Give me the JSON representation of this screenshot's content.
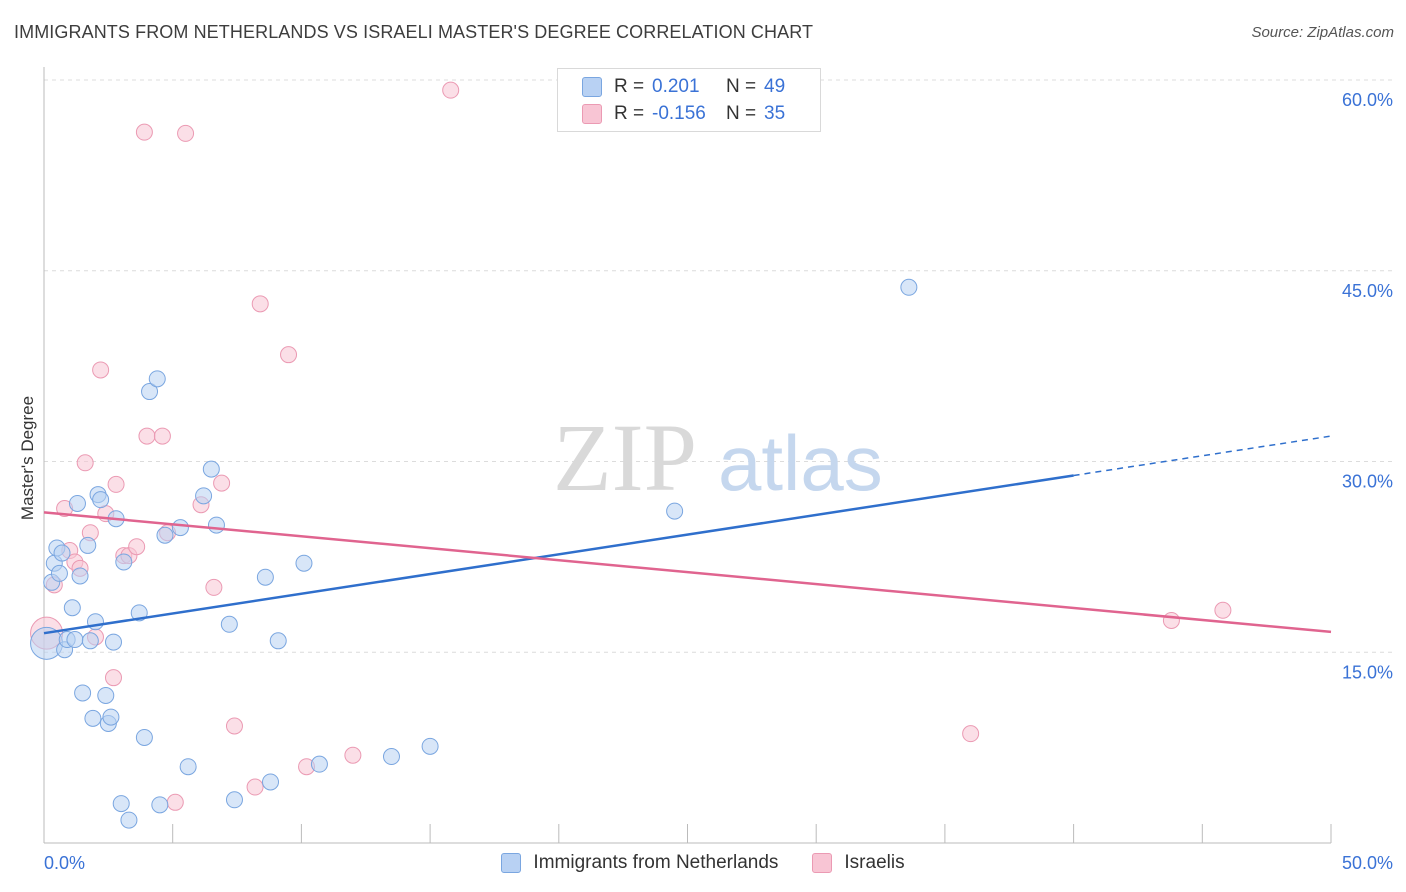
{
  "header": {
    "title": "IMMIGRANTS FROM NETHERLANDS VS ISRAELI MASTER'S DEGREE CORRELATION CHART",
    "source": "Source: ZipAtlas.com"
  },
  "watermark": {
    "zip": "ZIP",
    "atlas": "atlas"
  },
  "legend": {
    "r_label": "R =",
    "n_label": "N =",
    "series": [
      {
        "name": "Immigrants from Netherlands",
        "r": "0.201",
        "n": "49"
      },
      {
        "name": "Israelis",
        "r": "-0.156",
        "n": "35"
      }
    ]
  },
  "colors": {
    "blue_fill": "#b8d1f3",
    "blue_stroke": "#7aa6e0",
    "blue_line": "#2f6fcc",
    "pink_fill": "#f8c5d4",
    "pink_stroke": "#eb9ab3",
    "pink_line": "#e0648f",
    "axis_text": "#3a72d6",
    "grid": "#dcdcdc"
  },
  "chart_data": {
    "type": "scatter",
    "title": "IMMIGRANTS FROM NETHERLANDS VS ISRAELI MASTER'S DEGREE CORRELATION CHART",
    "xlabel": "",
    "ylabel": "Master's Degree",
    "xlim": [
      0,
      50
    ],
    "ylim": [
      0,
      60
    ],
    "x_tick_labels": [
      "0.0%",
      "50.0%"
    ],
    "y_ticks": [
      15,
      30,
      45,
      60
    ],
    "y_tick_labels": [
      "15.0%",
      "30.0%",
      "45.0%",
      "60.0%"
    ],
    "series": [
      {
        "name": "Immigrants from Netherlands",
        "color": "blue",
        "points": [
          [
            0.1,
            15.7
          ],
          [
            0.3,
            20.5
          ],
          [
            0.4,
            22.0
          ],
          [
            0.5,
            23.2
          ],
          [
            0.6,
            21.2
          ],
          [
            0.7,
            22.8
          ],
          [
            0.8,
            15.2
          ],
          [
            0.9,
            16.0
          ],
          [
            1.1,
            18.5
          ],
          [
            1.2,
            16.0
          ],
          [
            1.3,
            26.7
          ],
          [
            1.4,
            21.0
          ],
          [
            1.5,
            11.8
          ],
          [
            1.7,
            23.4
          ],
          [
            1.8,
            15.9
          ],
          [
            1.9,
            9.8
          ],
          [
            2.0,
            17.4
          ],
          [
            2.1,
            27.4
          ],
          [
            2.2,
            27.0
          ],
          [
            2.4,
            11.6
          ],
          [
            2.5,
            9.4
          ],
          [
            2.6,
            9.9
          ],
          [
            2.7,
            15.8
          ],
          [
            2.8,
            25.5
          ],
          [
            3.0,
            3.1
          ],
          [
            3.1,
            22.1
          ],
          [
            3.3,
            1.8
          ],
          [
            3.7,
            18.1
          ],
          [
            3.9,
            8.3
          ],
          [
            4.1,
            35.5
          ],
          [
            4.4,
            36.5
          ],
          [
            4.5,
            3.0
          ],
          [
            4.7,
            24.2
          ],
          [
            5.3,
            24.8
          ],
          [
            5.6,
            6.0
          ],
          [
            6.2,
            27.3
          ],
          [
            6.5,
            29.4
          ],
          [
            6.7,
            25.0
          ],
          [
            7.2,
            17.2
          ],
          [
            7.4,
            3.4
          ],
          [
            8.6,
            20.9
          ],
          [
            8.8,
            4.8
          ],
          [
            9.1,
            15.9
          ],
          [
            10.1,
            22.0
          ],
          [
            10.7,
            6.2
          ],
          [
            13.5,
            6.8
          ],
          [
            15.0,
            7.6
          ],
          [
            24.5,
            26.1
          ],
          [
            33.6,
            43.7
          ]
        ],
        "trend": {
          "x": [
            0,
            40,
            50
          ],
          "y": [
            16.5,
            28.9,
            32.0
          ],
          "dashed_after": 40
        }
      },
      {
        "name": "Israelis",
        "color": "pink",
        "points": [
          [
            0.1,
            16.5
          ],
          [
            0.4,
            20.3
          ],
          [
            0.8,
            26.3
          ],
          [
            1.0,
            23.0
          ],
          [
            1.2,
            22.1
          ],
          [
            1.4,
            21.6
          ],
          [
            1.6,
            29.9
          ],
          [
            1.8,
            24.4
          ],
          [
            2.0,
            16.2
          ],
          [
            2.2,
            37.2
          ],
          [
            2.4,
            25.9
          ],
          [
            2.7,
            13.0
          ],
          [
            2.8,
            28.2
          ],
          [
            3.1,
            22.6
          ],
          [
            3.3,
            22.6
          ],
          [
            3.6,
            23.3
          ],
          [
            3.9,
            55.9
          ],
          [
            4.0,
            32.0
          ],
          [
            4.6,
            32.0
          ],
          [
            4.8,
            24.4
          ],
          [
            5.1,
            3.2
          ],
          [
            5.5,
            55.8
          ],
          [
            6.1,
            26.6
          ],
          [
            6.6,
            20.1
          ],
          [
            6.9,
            28.3
          ],
          [
            7.4,
            9.2
          ],
          [
            8.2,
            4.4
          ],
          [
            8.4,
            42.4
          ],
          [
            9.5,
            38.4
          ],
          [
            10.2,
            6.0
          ],
          [
            12.0,
            6.9
          ],
          [
            15.8,
            59.2
          ],
          [
            36.0,
            8.6
          ],
          [
            43.8,
            17.5
          ],
          [
            45.8,
            18.3
          ]
        ],
        "trend": {
          "x": [
            0,
            50
          ],
          "y": [
            26.0,
            16.6
          ]
        }
      }
    ]
  }
}
